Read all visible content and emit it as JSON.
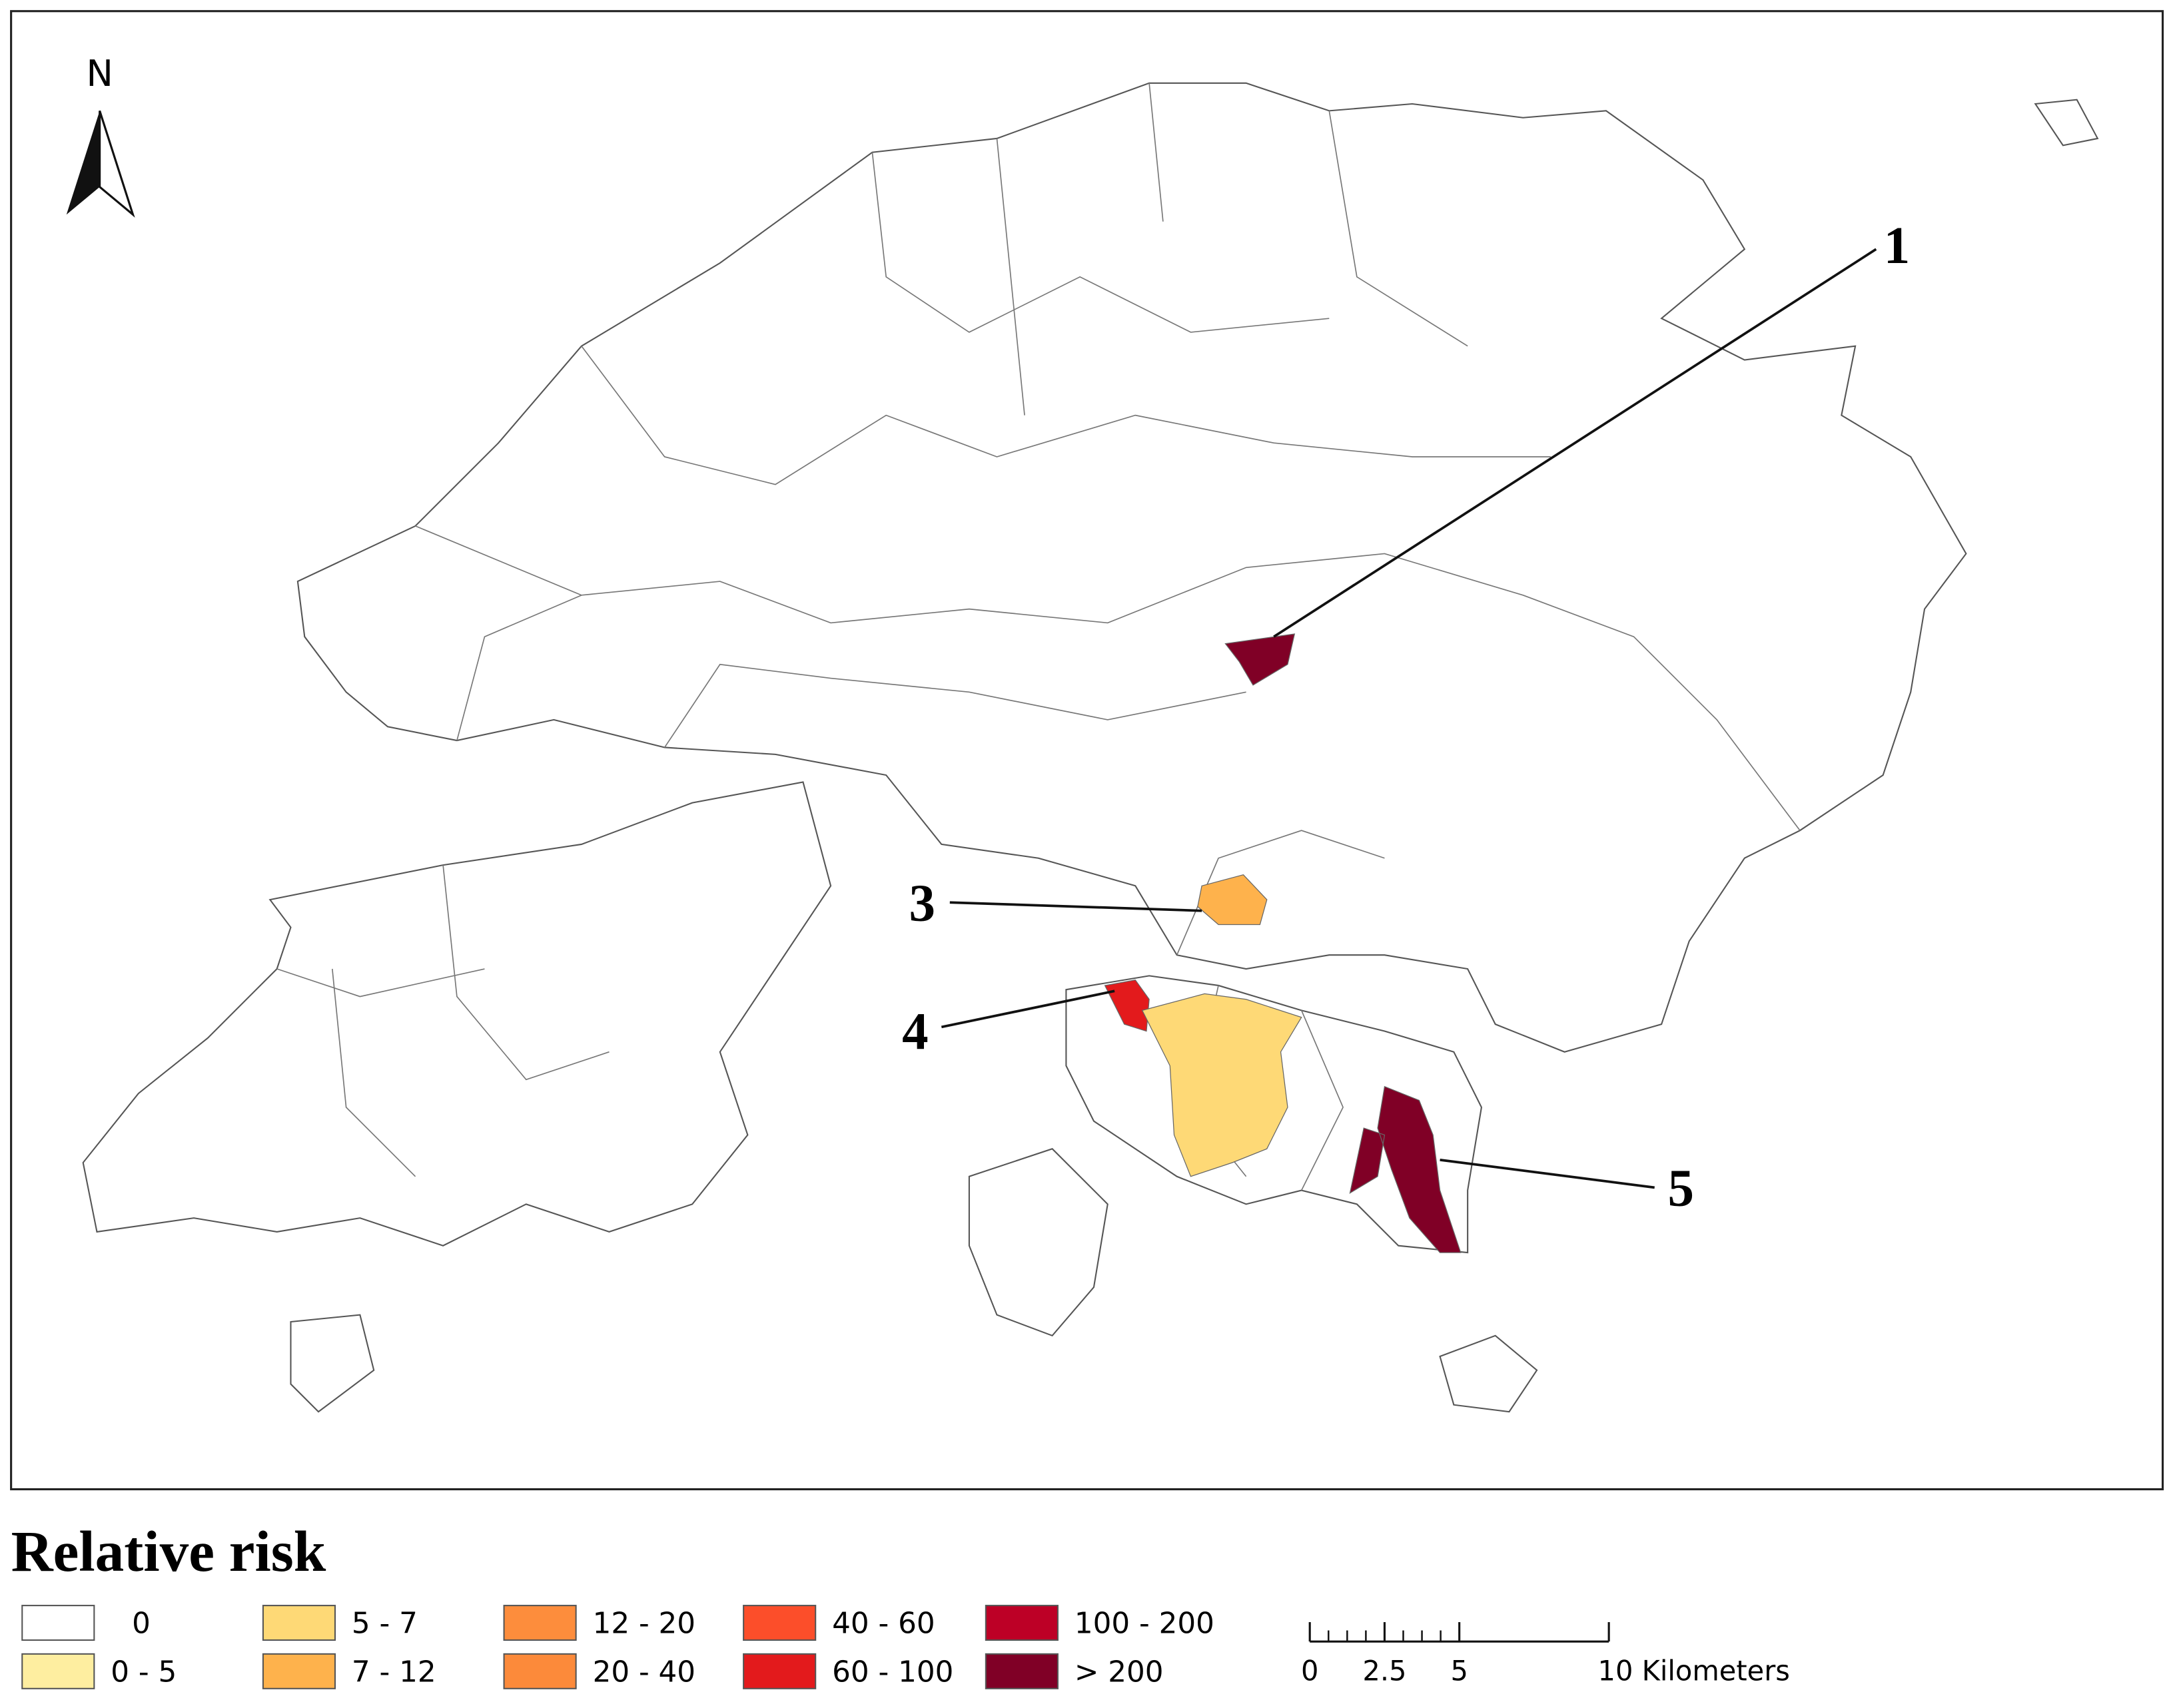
{
  "map": {
    "north_label": "N",
    "callouts": [
      {
        "label": "1"
      },
      {
        "label": "3"
      },
      {
        "label": "4"
      },
      {
        "label": "5"
      }
    ],
    "legend": {
      "title": "Relative risk",
      "items": [
        {
          "label": "0",
          "color": "#ffffff"
        },
        {
          "label": "0 - 5",
          "color": "#feeea0"
        },
        {
          "label": "5 - 7",
          "color": "#fed976"
        },
        {
          "label": "7 - 12",
          "color": "#feb24c"
        },
        {
          "label": "12 - 20",
          "color": "#fd8d3c"
        },
        {
          "label": "20 - 40",
          "color": "#fc8a3a"
        },
        {
          "label": "40 - 60",
          "color": "#fc4e2a"
        },
        {
          "label": "60 - 100",
          "color": "#e31a1c"
        },
        {
          "label": "100 - 200",
          "color": "#bd0026"
        },
        {
          "label": "> 200",
          "color": "#800026"
        }
      ]
    },
    "scale_bar": {
      "ticks": [
        0,
        2.5,
        5,
        {
          "value": 10,
          "label": "10 Kilometers"
        }
      ]
    }
  }
}
